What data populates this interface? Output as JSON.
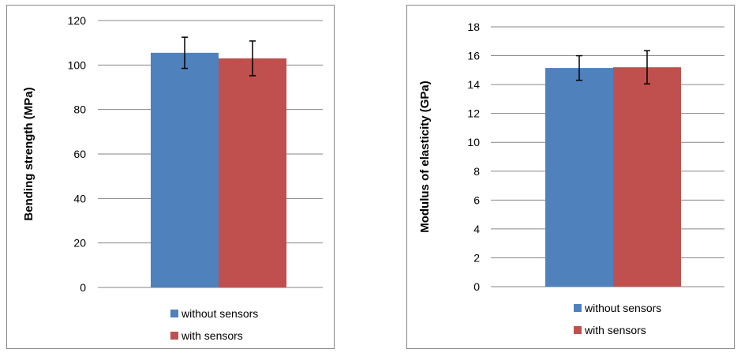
{
  "chart_data": [
    {
      "type": "bar",
      "title": "",
      "xlabel": "",
      "ylabel": "Bending strength (MPa)",
      "ylim": [
        0,
        120
      ],
      "yticks": [
        0,
        20,
        40,
        60,
        80,
        100,
        120
      ],
      "grid": true,
      "legend_position": "bottom",
      "series": [
        {
          "name": "without sensors",
          "color": "#4F81BD",
          "value": 105.5,
          "error": 7
        },
        {
          "name": "with sensors",
          "color": "#C0504D",
          "value": 103,
          "error": 7.8
        }
      ]
    },
    {
      "type": "bar",
      "title": "",
      "xlabel": "",
      "ylabel": "Modulus of elasticity (GPa)",
      "ylim": [
        0,
        18
      ],
      "yticks": [
        0,
        2,
        4,
        6,
        8,
        10,
        12,
        14,
        16,
        18
      ],
      "grid": true,
      "legend_position": "bottom",
      "series": [
        {
          "name": "without sensors",
          "color": "#4F81BD",
          "value": 15.15,
          "error": 0.85
        },
        {
          "name": "with sensors",
          "color": "#C0504D",
          "value": 15.2,
          "error": 1.15
        }
      ]
    }
  ]
}
